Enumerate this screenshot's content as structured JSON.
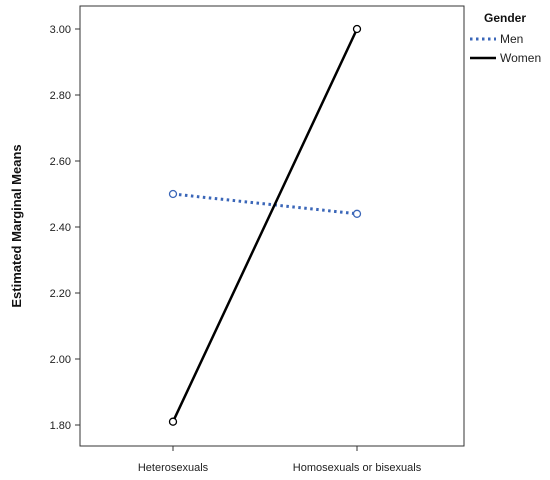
{
  "chart_data": {
    "type": "line",
    "categories": [
      "Heterosexuals",
      "Homosexuals or bisexuals"
    ],
    "series": [
      {
        "name": "Men",
        "values": [
          2.5,
          2.44
        ],
        "color": "#3a66b8",
        "line_style": "dotted"
      },
      {
        "name": "Women",
        "values": [
          1.81,
          3.0
        ],
        "color": "#000000",
        "line_style": "solid"
      }
    ],
    "ylabel": "Estimated Marginal Means",
    "xlabel": "",
    "ylim": [
      1.77,
      3.07
    ],
    "yticks": [
      "1.80",
      "2.00",
      "2.20",
      "2.40",
      "2.60",
      "2.80",
      "3.00"
    ],
    "ytick_values": [
      1.8,
      2.0,
      2.2,
      2.4,
      2.6,
      2.8,
      3.0
    ],
    "legend_title": "Gender",
    "legend_position": "top-right, outside plot",
    "grid": false,
    "markers": "open-circle"
  }
}
